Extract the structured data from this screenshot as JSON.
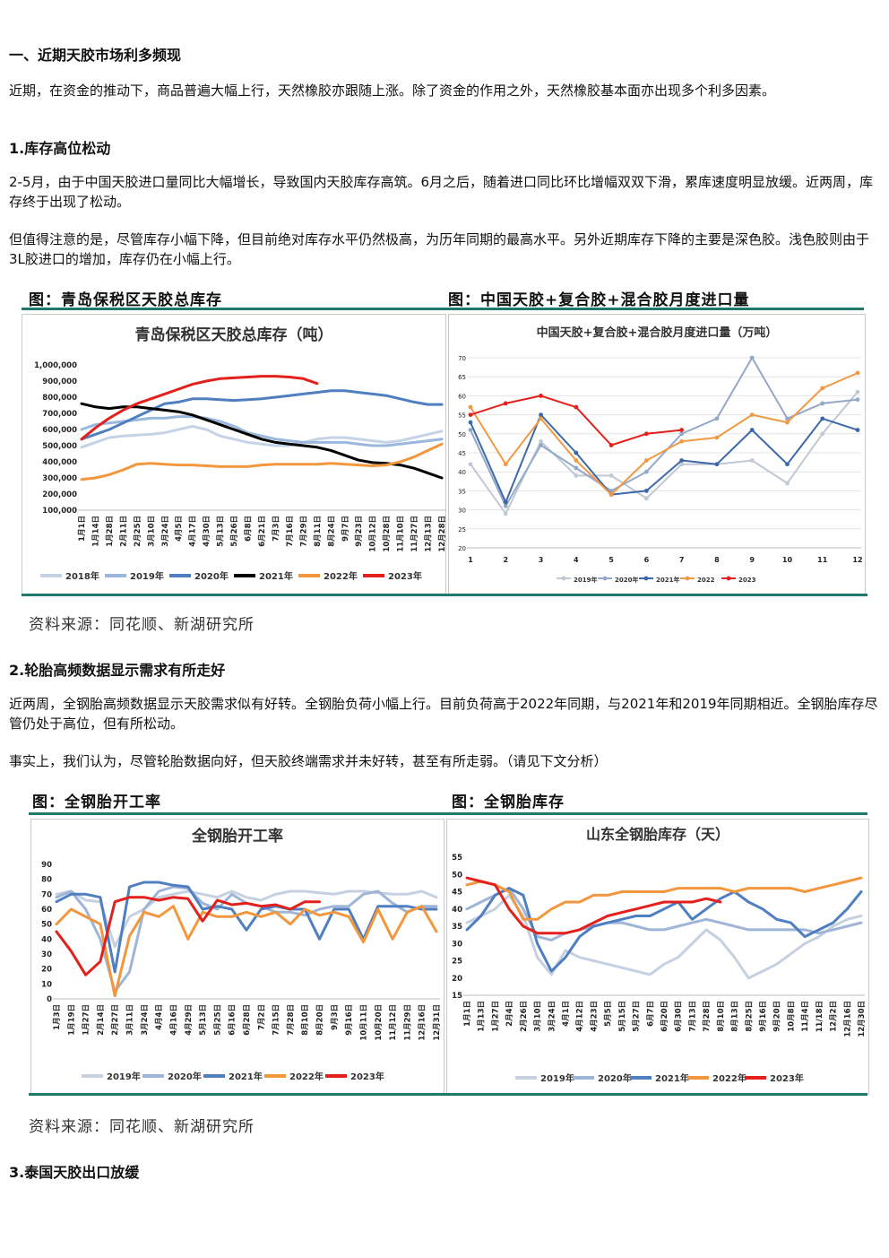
{
  "section": {
    "heading": "一、近期天胶市场利多频现",
    "intro": "近期，在资金的推动下，商品普遍大幅上行，天然橡胶亦跟随上涨。除了资金的作用之外，天然橡胶基本面亦出现多个利多因素。"
  },
  "sub1": {
    "heading": "1.库存高位松动",
    "p1": "2-5月，由于中国天胶进口量同比大幅增长，导致国内天胶库存高筑。6月之后，随着进口同比环比增幅双双下滑，累库速度明显放缓。近两周，库存终于出现了松动。",
    "p2": "但值得注意的是，尽管库存小幅下降，但目前绝对库存水平仍然极高，为历年同期的最高水平。另外近期库存下降的主要是深色胶。浅色胶则由于3L胶进口的增加，库存仍在小幅上行。"
  },
  "fig1": {
    "left_caption": "图：青岛保税区天胶总库存",
    "right_caption": "图：中国天胶+复合胶+混合胶月度进口量",
    "source": "资料来源：同花顺、新湖研究所"
  },
  "sub2": {
    "heading": "2.轮胎高频数据显示需求有所走好",
    "p1": "近两周，全钢胎高频数据显示天胶需求似有好转。全钢胎负荷小幅上行。目前负荷高于2022年同期，与2021年和2019年同期相近。全钢胎库存尽管仍处于高位，但有所松动。",
    "p2": "事实上，我们认为，尽管轮胎数据向好，但天胶终端需求并未好转，甚至有所走弱。（请见下文分析）"
  },
  "fig2": {
    "left_caption": "图：全钢胎开工率",
    "right_caption": "图：全钢胎库存",
    "source": "资料来源：同花顺、新湖研究所"
  },
  "sub3": {
    "heading": "3.泰国天胶出口放缓"
  },
  "chart_data": [
    {
      "type": "line",
      "title": "青岛保税区天胶总库存（吨）",
      "ylim": [
        100000,
        1000000
      ],
      "yticks": [
        "1,000,000",
        "900,000",
        "800,000",
        "700,000",
        "600,000",
        "500,000",
        "400,000",
        "300,000",
        "200,000",
        "100,000"
      ],
      "x_labels": [
        "1月1日",
        "1月14日",
        "1月28日",
        "2月11日",
        "2月25日",
        "3月10日",
        "3月24日",
        "4月5日",
        "4月17日",
        "4月30日",
        "5月13日",
        "5月26日",
        "6月8日",
        "6月21日",
        "7月3日",
        "7月16日",
        "7月29日",
        "8月11日",
        "8月24日",
        "9月7日",
        "9月23日",
        "10月12日",
        "10月28日",
        "11月10日",
        "11月27日",
        "12月13日",
        "12月28日"
      ],
      "series": [
        {
          "name": "2018年",
          "color": "#c5d3e6",
          "values": [
            490000,
            520000,
            550000,
            560000,
            565000,
            570000,
            580000,
            600000,
            620000,
            600000,
            560000,
            540000,
            520000,
            510000,
            500000,
            500000,
            520000,
            540000,
            550000,
            550000,
            540000,
            530000,
            520000,
            530000,
            550000,
            570000,
            590000
          ]
        },
        {
          "name": "2019年",
          "color": "#9ab7de",
          "values": [
            600000,
            630000,
            640000,
            650000,
            660000,
            670000,
            670000,
            680000,
            680000,
            670000,
            650000,
            620000,
            580000,
            560000,
            540000,
            530000,
            520000,
            520000,
            520000,
            520000,
            510000,
            500000,
            500000,
            510000,
            520000,
            530000,
            540000
          ]
        },
        {
          "name": "2020年",
          "color": "#4f7fc0",
          "values": [
            540000,
            570000,
            600000,
            640000,
            680000,
            720000,
            760000,
            770000,
            790000,
            790000,
            785000,
            780000,
            785000,
            790000,
            800000,
            810000,
            820000,
            830000,
            840000,
            840000,
            830000,
            820000,
            810000,
            790000,
            770000,
            755000,
            755000
          ]
        },
        {
          "name": "2021年",
          "color": "#000000",
          "values": [
            760000,
            740000,
            730000,
            740000,
            740000,
            730000,
            720000,
            710000,
            690000,
            660000,
            630000,
            600000,
            570000,
            540000,
            520000,
            510000,
            500000,
            490000,
            470000,
            440000,
            410000,
            395000,
            390000,
            380000,
            360000,
            330000,
            300000
          ]
        },
        {
          "name": "2022年",
          "color": "#f2973d",
          "values": [
            290000,
            300000,
            320000,
            350000,
            385000,
            390000,
            385000,
            380000,
            380000,
            375000,
            370000,
            370000,
            370000,
            380000,
            385000,
            385000,
            385000,
            385000,
            390000,
            385000,
            380000,
            375000,
            380000,
            400000,
            430000,
            470000,
            510000
          ]
        },
        {
          "name": "2023年",
          "color": "#e3201b",
          "values": [
            540000,
            610000,
            670000,
            720000,
            760000,
            790000,
            820000,
            850000,
            880000,
            900000,
            915000,
            920000,
            925000,
            930000,
            930000,
            925000,
            915000,
            885000,
            null,
            null,
            null,
            null,
            null,
            null,
            null,
            null,
            null
          ]
        }
      ]
    },
    {
      "type": "line",
      "title": "中国天胶+复合胶+混合胶月度进口量（万吨）",
      "ylim": [
        20,
        70
      ],
      "x": [
        1,
        2,
        3,
        4,
        5,
        6,
        7,
        8,
        9,
        10,
        11,
        12
      ],
      "series": [
        {
          "name": "2019年",
          "color": "#c0c8d4",
          "values": [
            42,
            29,
            48,
            39,
            39,
            33,
            42,
            42,
            43,
            37,
            50,
            61
          ]
        },
        {
          "name": "2020年",
          "color": "#94a9c8",
          "values": [
            51,
            31,
            47,
            41,
            35,
            40,
            50,
            54,
            70,
            54,
            58,
            59
          ]
        },
        {
          "name": "2021年",
          "color": "#3d68aa",
          "values": [
            53,
            32,
            55,
            45,
            34,
            35,
            43,
            42,
            51,
            42,
            54,
            51
          ]
        },
        {
          "name": "2022",
          "color": "#f09a45",
          "values": [
            57,
            42,
            54,
            43,
            34,
            43,
            48,
            49,
            55,
            53,
            62,
            66
          ]
        },
        {
          "name": "2023",
          "color": "#e3201b",
          "values": [
            55,
            58,
            60,
            57,
            47,
            50,
            51,
            null,
            null,
            null,
            null,
            null
          ]
        }
      ]
    },
    {
      "type": "line",
      "title": "全钢胎开工率",
      "ylim": [
        0,
        90
      ],
      "yticks": [
        "90",
        "80",
        "70",
        "60",
        "50",
        "40",
        "30",
        "20",
        "10",
        "0"
      ],
      "x_labels": [
        "1月3日",
        "1月19日",
        "1月27日",
        "2月14日",
        "2月27日",
        "3月11日",
        "3月24日",
        "4月4日",
        "4月16日",
        "4月29日",
        "5月13日",
        "5月25日",
        "6月16日",
        "6月28日",
        "7月2日",
        "7月15日",
        "7月28日",
        "8月10日",
        "8月20日",
        "9月3日",
        "9月16日",
        "10月11日",
        "10月20日",
        "11月12日",
        "11月29日",
        "12月16日",
        "12月31日"
      ],
      "series": [
        {
          "name": "2019年",
          "color": "#c5d0e0",
          "values": [
            70,
            72,
            66,
            65,
            35,
            55,
            60,
            68,
            70,
            72,
            70,
            68,
            72,
            68,
            66,
            70,
            72,
            72,
            71,
            70,
            72,
            72,
            71,
            70,
            70,
            72,
            68
          ]
        },
        {
          "name": "2020年",
          "color": "#9fb5d8",
          "values": [
            68,
            72,
            60,
            40,
            5,
            18,
            60,
            72,
            75,
            74,
            64,
            60,
            70,
            64,
            62,
            58,
            58,
            56,
            60,
            62,
            62,
            70,
            72,
            64,
            58,
            62,
            62
          ]
        },
        {
          "name": "2021年",
          "color": "#4f7fc0",
          "values": [
            65,
            70,
            70,
            68,
            18,
            75,
            78,
            78,
            76,
            75,
            60,
            62,
            60,
            46,
            60,
            62,
            60,
            60,
            40,
            60,
            60,
            40,
            62,
            62,
            62,
            60,
            60
          ]
        },
        {
          "name": "2022年",
          "color": "#f2973d",
          "values": [
            50,
            60,
            55,
            50,
            2,
            42,
            58,
            55,
            62,
            40,
            58,
            55,
            55,
            58,
            55,
            58,
            50,
            60,
            56,
            58,
            55,
            38,
            60,
            40,
            58,
            62,
            45
          ]
        },
        {
          "name": "2023年",
          "color": "#e3201b",
          "values": [
            45,
            32,
            16,
            25,
            65,
            68,
            68,
            66,
            68,
            67,
            52,
            66,
            63,
            64,
            62,
            63,
            60,
            65,
            65,
            null,
            null,
            null,
            null,
            null,
            null,
            null,
            null
          ]
        }
      ]
    },
    {
      "type": "line",
      "title": "山东全钢胎库存（天）",
      "ylim": [
        15,
        55
      ],
      "yticks": [
        "55",
        "50",
        "45",
        "40",
        "35",
        "30",
        "25",
        "20",
        "15"
      ],
      "x_labels": [
        "1月1日",
        "1月13日",
        "1月27日",
        "2月4日",
        "2月26日",
        "3月10日",
        "3月24日",
        "4月1日",
        "4月12日",
        "4月23日",
        "5月5日",
        "5月15日",
        "5月27日",
        "6月7日",
        "6月20日",
        "6月30日",
        "7月13日",
        "7月28日",
        "8月10日",
        "8月13日",
        "8月25日",
        "9月16日",
        "9月20日",
        "10月8日",
        "11月4日",
        "11/18日",
        "12月2日",
        "12月16日",
        "12月30日"
      ],
      "series": [
        {
          "name": "2019年",
          "color": "#c5d0e0",
          "values": [
            36,
            38,
            40,
            44,
            38,
            26,
            21,
            28,
            26,
            25,
            24,
            23,
            22,
            21,
            24,
            26,
            30,
            34,
            31,
            26,
            20,
            22,
            24,
            27,
            30,
            32,
            35,
            37,
            38
          ]
        },
        {
          "name": "2020年",
          "color": "#9fb5d8",
          "values": [
            40,
            42,
            44,
            46,
            40,
            32,
            31,
            33,
            34,
            35,
            36,
            36,
            35,
            34,
            34,
            35,
            36,
            37,
            36,
            35,
            34,
            34,
            34,
            34,
            34,
            33,
            34,
            35,
            36
          ]
        },
        {
          "name": "2021年",
          "color": "#4f7fc0",
          "values": [
            34,
            38,
            44,
            46,
            44,
            30,
            22,
            26,
            32,
            35,
            36,
            37,
            38,
            38,
            40,
            42,
            37,
            40,
            43,
            45,
            42,
            40,
            37,
            36,
            32,
            34,
            36,
            40,
            45
          ]
        },
        {
          "name": "2022年",
          "color": "#f2973d",
          "values": [
            47,
            48,
            47,
            45,
            37,
            37,
            40,
            42,
            42,
            44,
            44,
            45,
            45,
            45,
            45,
            46,
            46,
            46,
            46,
            45,
            46,
            46,
            46,
            46,
            45,
            46,
            47,
            48,
            49
          ]
        },
        {
          "name": "2023年",
          "color": "#e3201b",
          "values": [
            49,
            48,
            47,
            40,
            35,
            33,
            33,
            33,
            34,
            36,
            38,
            39,
            40,
            41,
            42,
            42,
            42,
            43,
            42,
            null,
            null,
            null,
            null,
            null,
            null,
            null,
            null,
            null,
            null
          ]
        }
      ]
    }
  ]
}
